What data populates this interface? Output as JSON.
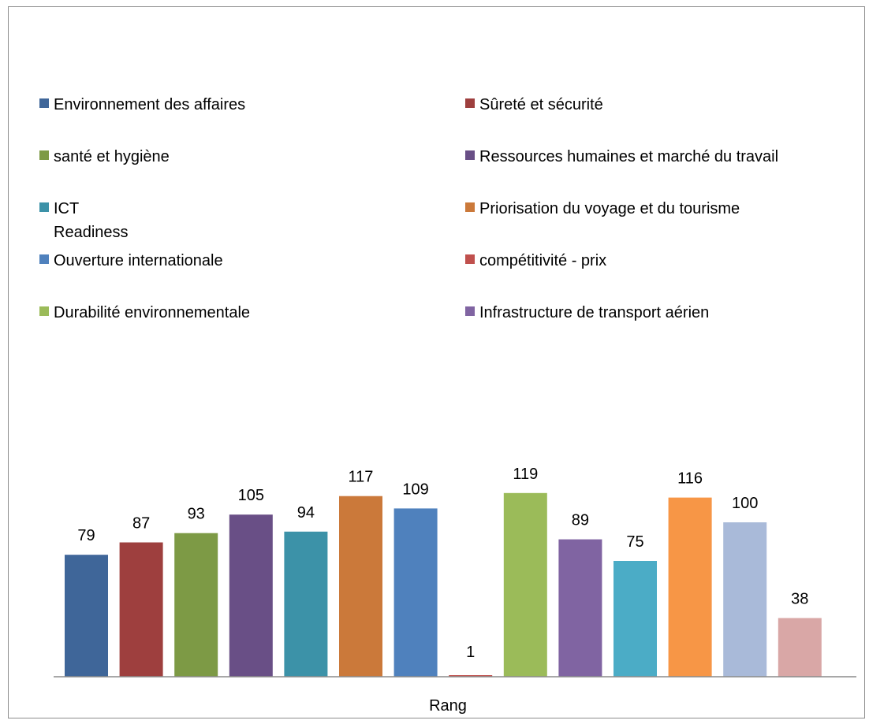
{
  "chart_data": {
    "type": "bar",
    "xlabel": "Rang",
    "categories": [
      "Rang"
    ],
    "series": [
      {
        "name": "Environnement des affaires",
        "value": 79,
        "color": "#3F6699",
        "legend": [
          "Environnement des affaires"
        ]
      },
      {
        "name": "Sûreté et sécurité",
        "value": 87,
        "color": "#9E3F3E",
        "legend": [
          "Sûreté et sécurité"
        ]
      },
      {
        "name": "santé et hygiène",
        "value": 93,
        "color": "#7D9A45",
        "legend": [
          "santé et hygiène"
        ]
      },
      {
        "name": "Ressources humaines et marché du travail",
        "value": 105,
        "color": "#694F86",
        "legend": [
          "Ressources humaines et marché du travail"
        ]
      },
      {
        "name": "ICT Readiness",
        "value": 94,
        "color": "#3C92A8",
        "legend": [
          "ICT",
          "Readiness"
        ]
      },
      {
        "name": "Priorisation du voyage et du tourisme",
        "value": 117,
        "color": "#CB793A",
        "legend": [
          "Priorisation du voyage et du tourisme"
        ]
      },
      {
        "name": "Ouverture internationale",
        "value": 109,
        "color": "#4F81BD",
        "legend": [
          "Ouverture internationale"
        ]
      },
      {
        "name": "compétitivité - prix",
        "value": 1,
        "color": "#C0504D",
        "legend": [
          "compétitivité - prix"
        ]
      },
      {
        "name": "Durabilité environnementale",
        "value": 119,
        "color": "#9BBB59",
        "legend": [
          "Durabilité environnementale"
        ]
      },
      {
        "name": "Infrastructure de transport aérien",
        "value": 89,
        "color": "#8064A2",
        "legend": [
          "Infrastructure de transport aérien"
        ]
      },
      {
        "name": "",
        "value": 75,
        "color": "#4BACC6"
      },
      {
        "name": "",
        "value": 116,
        "color": "#F79646"
      },
      {
        "name": "",
        "value": 100,
        "color": "#A9BAD9"
      },
      {
        "name": "",
        "value": 38,
        "color": "#D9A7A6"
      }
    ],
    "ylim": [
      0,
      130
    ],
    "grid": false,
    "legend_position": "top"
  }
}
